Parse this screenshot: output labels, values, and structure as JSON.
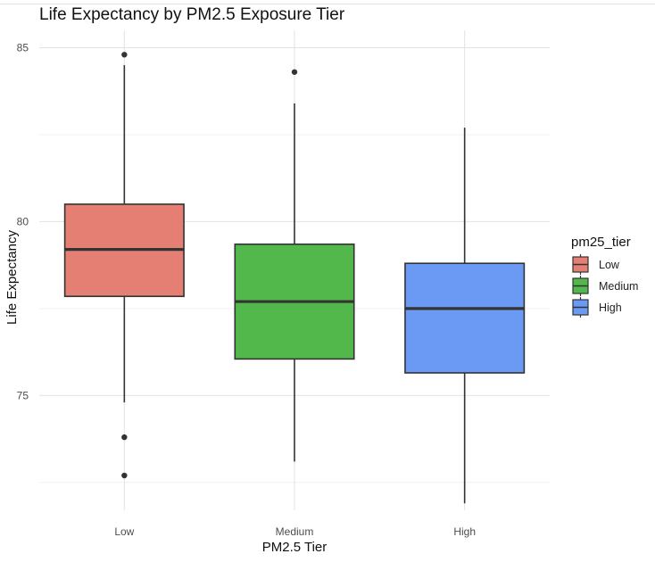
{
  "chart_data": {
    "type": "boxplot",
    "title": "Life Expectancy by PM2.5 Exposure Tier",
    "xlabel": "PM2.5 Tier",
    "ylabel": "Life Expectancy",
    "ylim": [
      71.7,
      85.5
    ],
    "yticks": [
      75,
      80,
      85
    ],
    "grid": true,
    "legend": {
      "title": "pm25_tier",
      "placement": "right"
    },
    "categories": [
      "Low",
      "Medium",
      "High"
    ],
    "boxes": [
      {
        "name": "Low",
        "color": "#E57F74",
        "whisker_low": 74.8,
        "q1": 77.85,
        "median": 79.2,
        "q3": 80.5,
        "whisker_high": 84.5,
        "outliers": [
          84.8,
          73.8,
          72.7
        ]
      },
      {
        "name": "Medium",
        "color": "#52B84B",
        "whisker_low": 73.1,
        "q1": 76.05,
        "median": 77.7,
        "q3": 79.35,
        "whisker_high": 83.4,
        "outliers": [
          84.3
        ]
      },
      {
        "name": "High",
        "color": "#6B9AF5",
        "whisker_low": 71.9,
        "q1": 75.65,
        "median": 77.5,
        "q3": 78.8,
        "whisker_high": 82.7,
        "outliers": []
      }
    ]
  }
}
